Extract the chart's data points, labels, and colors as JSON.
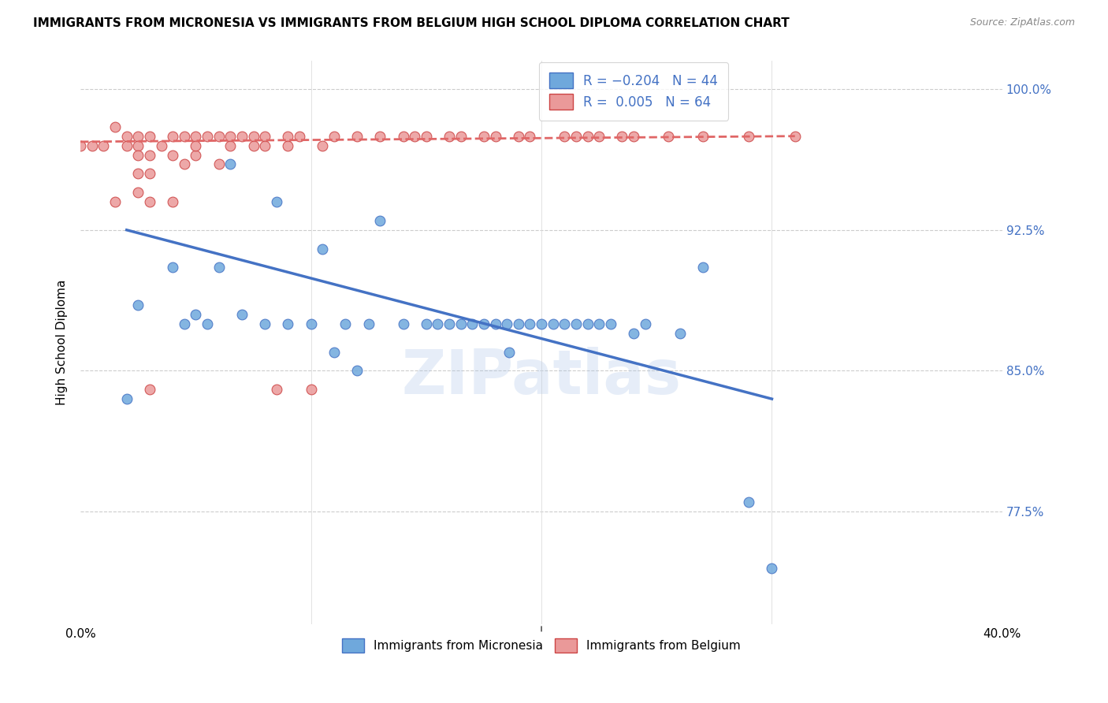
{
  "title": "IMMIGRANTS FROM MICRONESIA VS IMMIGRANTS FROM BELGIUM HIGH SCHOOL DIPLOMA CORRELATION CHART",
  "source": "Source: ZipAtlas.com",
  "ylabel": "High School Diploma",
  "xlim": [
    0.0,
    0.4
  ],
  "ylim": [
    0.715,
    1.015
  ],
  "blue_color": "#6fa8dc",
  "pink_color": "#ea9999",
  "blue_line_color": "#4472c4",
  "pink_line_color": "#e06666",
  "pink_edge_color": "#cc4444",
  "watermark": "ZIPatlas",
  "legend_label_blue": "Immigrants from Micronesia",
  "legend_label_pink": "Immigrants from Belgium",
  "blue_scatter_x": [
    0.02,
    0.025,
    0.04,
    0.045,
    0.05,
    0.055,
    0.06,
    0.065,
    0.07,
    0.08,
    0.085,
    0.09,
    0.1,
    0.105,
    0.11,
    0.115,
    0.12,
    0.125,
    0.13,
    0.14,
    0.15,
    0.155,
    0.16,
    0.165,
    0.17,
    0.175,
    0.18,
    0.185,
    0.186,
    0.19,
    0.195,
    0.2,
    0.205,
    0.21,
    0.215,
    0.22,
    0.225,
    0.23,
    0.24,
    0.245,
    0.26,
    0.27,
    0.29,
    0.3
  ],
  "blue_scatter_y": [
    0.835,
    0.885,
    0.905,
    0.875,
    0.88,
    0.875,
    0.905,
    0.96,
    0.88,
    0.875,
    0.94,
    0.875,
    0.875,
    0.915,
    0.86,
    0.875,
    0.85,
    0.875,
    0.93,
    0.875,
    0.875,
    0.875,
    0.875,
    0.875,
    0.875,
    0.875,
    0.875,
    0.875,
    0.86,
    0.875,
    0.875,
    0.875,
    0.875,
    0.875,
    0.875,
    0.875,
    0.875,
    0.875,
    0.87,
    0.875,
    0.87,
    0.905,
    0.78,
    0.745
  ],
  "pink_scatter_x": [
    0.0,
    0.005,
    0.01,
    0.015,
    0.015,
    0.02,
    0.02,
    0.025,
    0.025,
    0.025,
    0.025,
    0.025,
    0.03,
    0.03,
    0.03,
    0.03,
    0.03,
    0.035,
    0.04,
    0.04,
    0.04,
    0.045,
    0.045,
    0.05,
    0.05,
    0.05,
    0.055,
    0.06,
    0.06,
    0.065,
    0.065,
    0.07,
    0.075,
    0.075,
    0.08,
    0.08,
    0.085,
    0.09,
    0.09,
    0.095,
    0.1,
    0.105,
    0.11,
    0.12,
    0.13,
    0.14,
    0.145,
    0.15,
    0.16,
    0.165,
    0.175,
    0.18,
    0.19,
    0.195,
    0.21,
    0.215,
    0.22,
    0.225,
    0.235,
    0.24,
    0.255,
    0.27,
    0.29,
    0.31
  ],
  "pink_scatter_y": [
    0.97,
    0.97,
    0.97,
    0.98,
    0.94,
    0.975,
    0.97,
    0.975,
    0.97,
    0.965,
    0.955,
    0.945,
    0.975,
    0.965,
    0.955,
    0.94,
    0.84,
    0.97,
    0.975,
    0.965,
    0.94,
    0.975,
    0.96,
    0.975,
    0.965,
    0.97,
    0.975,
    0.975,
    0.96,
    0.975,
    0.97,
    0.975,
    0.975,
    0.97,
    0.975,
    0.97,
    0.84,
    0.975,
    0.97,
    0.975,
    0.84,
    0.97,
    0.975,
    0.975,
    0.975,
    0.975,
    0.975,
    0.975,
    0.975,
    0.975,
    0.975,
    0.975,
    0.975,
    0.975,
    0.975,
    0.975,
    0.975,
    0.975,
    0.975,
    0.975,
    0.975,
    0.975,
    0.975,
    0.975
  ],
  "blue_trendline_x": [
    0.02,
    0.3
  ],
  "blue_trendline_y": [
    0.925,
    0.835
  ],
  "pink_trendline_x": [
    0.0,
    0.31
  ],
  "pink_trendline_y": [
    0.972,
    0.975
  ],
  "ytick_vals": [
    0.775,
    0.85,
    0.925,
    1.0
  ],
  "ytick_labels": [
    "77.5%",
    "85.0%",
    "92.5%",
    "100.0%"
  ],
  "xtick_vals": [
    0.0,
    0.1,
    0.2,
    0.3,
    0.4
  ],
  "xtick_labels": [
    "0.0%",
    "",
    "",
    "",
    "40.0%"
  ]
}
